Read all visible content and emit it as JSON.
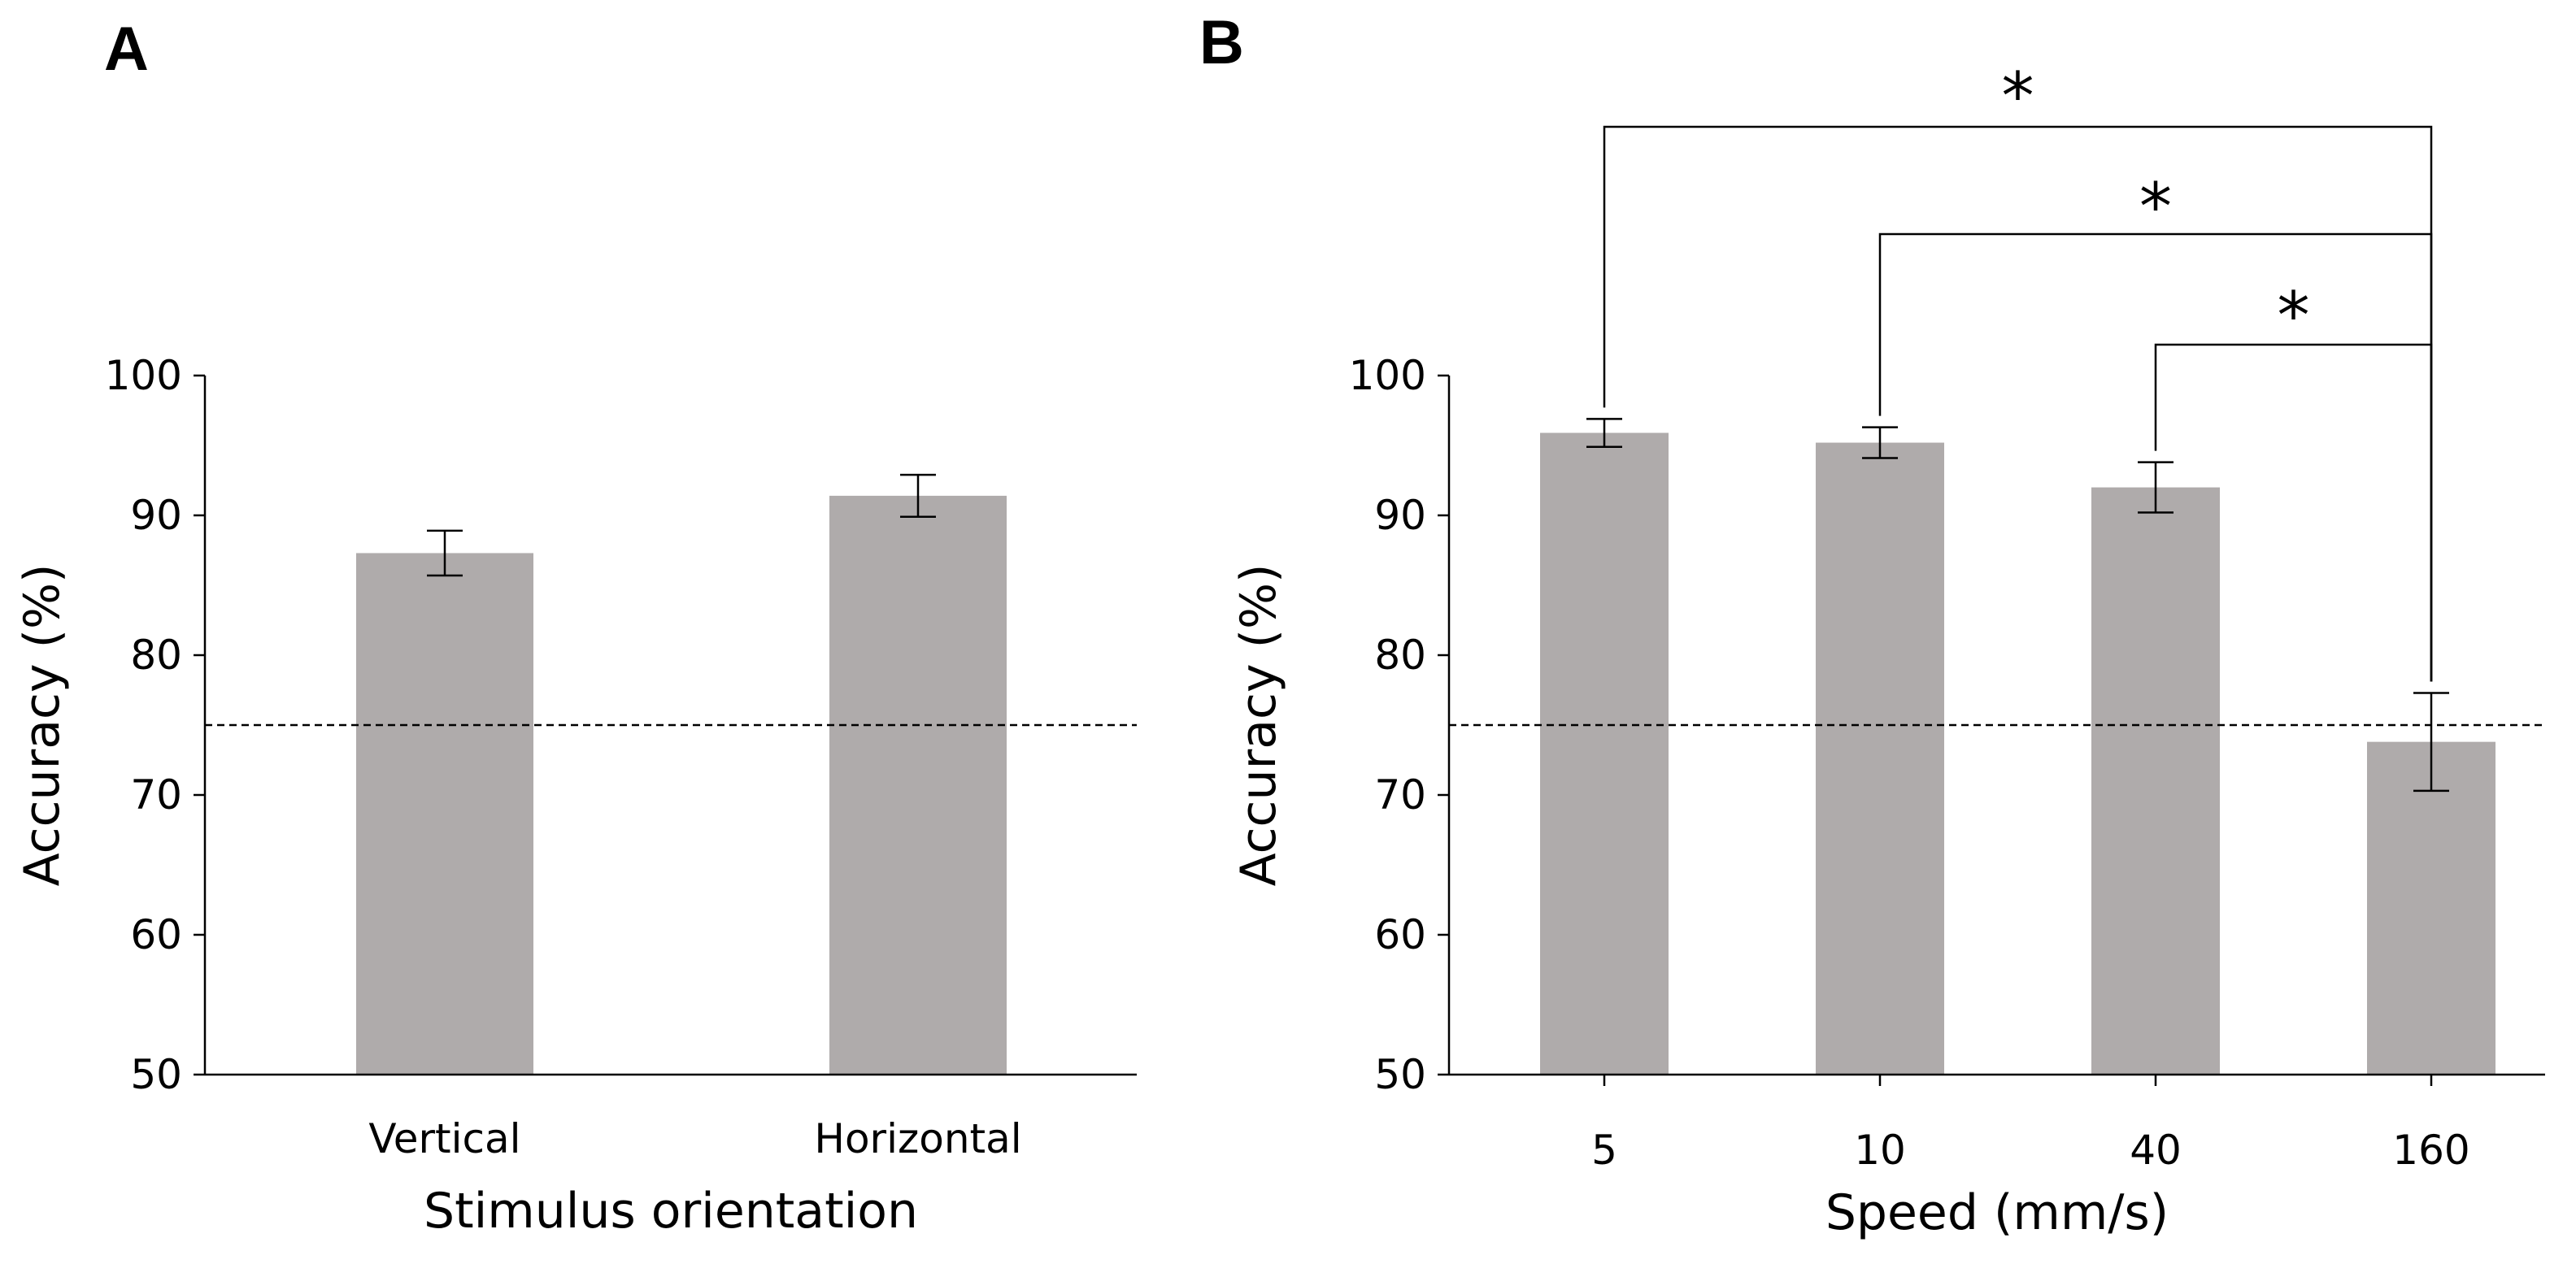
{
  "chart_data": [
    {
      "panel": "A",
      "type": "bar",
      "categories": [
        "Vertical",
        "Horizontal"
      ],
      "values": [
        87.3,
        91.4
      ],
      "errors": [
        1.6,
        1.5
      ],
      "xlabel": "Stimulus orientation",
      "ylabel": "Accuracy (%)",
      "ylim": [
        50,
        100
      ],
      "yticks": [
        50,
        60,
        70,
        80,
        90,
        100
      ],
      "reference_line": 75,
      "bar_color": "#afabab"
    },
    {
      "panel": "B",
      "type": "bar",
      "categories": [
        "5",
        "10",
        "40",
        "160"
      ],
      "values": [
        95.9,
        95.2,
        92.0,
        73.8
      ],
      "errors": [
        1.0,
        1.1,
        1.8,
        3.5
      ],
      "xlabel": "Speed (mm/s)",
      "ylabel": "Accuracy (%)",
      "ylim": [
        50,
        100
      ],
      "yticks": [
        50,
        60,
        70,
        80,
        90,
        100
      ],
      "reference_line": 75,
      "bar_color": "#afabab",
      "significance": [
        {
          "from": "5",
          "to": "160",
          "label": "*"
        },
        {
          "from": "10",
          "to": "160",
          "label": "*"
        },
        {
          "from": "40",
          "to": "160",
          "label": "*"
        }
      ]
    }
  ]
}
